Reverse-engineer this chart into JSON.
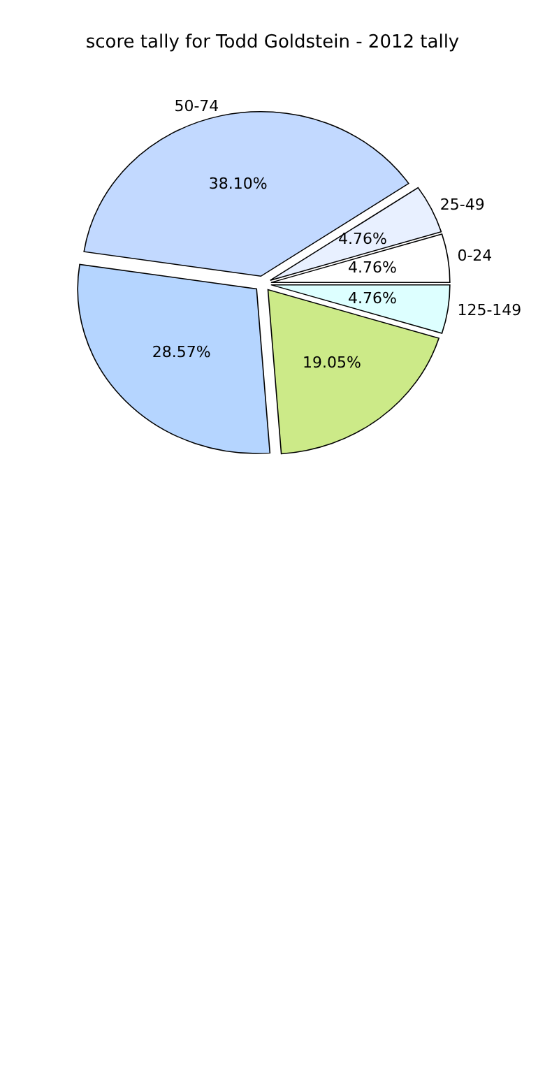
{
  "chart_data": {
    "type": "pie",
    "title": "score tally for Todd Goldstein - 2012 tally",
    "categories": [
      "0-24",
      "25-49",
      "50-74",
      null,
      null,
      "125-149"
    ],
    "values": [
      4.76,
      4.76,
      38.1,
      28.57,
      19.05,
      4.76
    ],
    "value_labels": [
      "4.76%",
      "4.76%",
      "38.10%",
      "28.57%",
      "19.05%",
      "4.76%"
    ],
    "colors": [
      "#ffffff",
      "#e8f0ff",
      "#c2d9ff",
      "#b5d5ff",
      "#ccea88",
      "#ddffff"
    ]
  }
}
